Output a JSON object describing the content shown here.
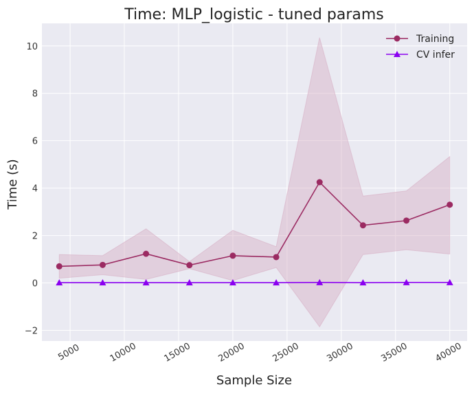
{
  "chart_data": {
    "type": "line",
    "title": "Time: MLP_logistic - tuned params",
    "xlabel": "Sample Size",
    "ylabel": "Time (s)",
    "xlim": [
      2400,
      41600
    ],
    "ylim": [
      -2.45,
      10.95
    ],
    "x_ticks": [
      5000,
      10000,
      15000,
      20000,
      25000,
      30000,
      35000,
      40000
    ],
    "y_ticks": [
      -2,
      0,
      2,
      4,
      6,
      8,
      10
    ],
    "x": [
      4000,
      8000,
      12000,
      16000,
      20000,
      24000,
      28000,
      32000,
      36000,
      40000
    ],
    "grid": true,
    "legend_position": "top-right",
    "background": "#EAEAF2",
    "series": [
      {
        "name": "Training",
        "marker": "circle",
        "color": "#9B2B62",
        "values": [
          0.7,
          0.76,
          1.23,
          0.75,
          1.15,
          1.09,
          4.25,
          2.43,
          2.63,
          3.3
        ],
        "band_lower": [
          0.2,
          0.35,
          0.15,
          0.6,
          0.1,
          0.65,
          -1.85,
          1.2,
          1.4,
          1.22
        ],
        "band_upper": [
          1.2,
          1.15,
          2.28,
          0.9,
          2.22,
          1.53,
          10.35,
          3.66,
          3.88,
          5.33
        ],
        "band_color": "#D7AFC4"
      },
      {
        "name": "CV infer",
        "marker": "triangle",
        "color": "#8A00F0",
        "values": [
          0.01,
          0.01,
          0.01,
          0.01,
          0.01,
          0.01,
          0.02,
          0.01,
          0.02,
          0.02
        ]
      }
    ]
  }
}
